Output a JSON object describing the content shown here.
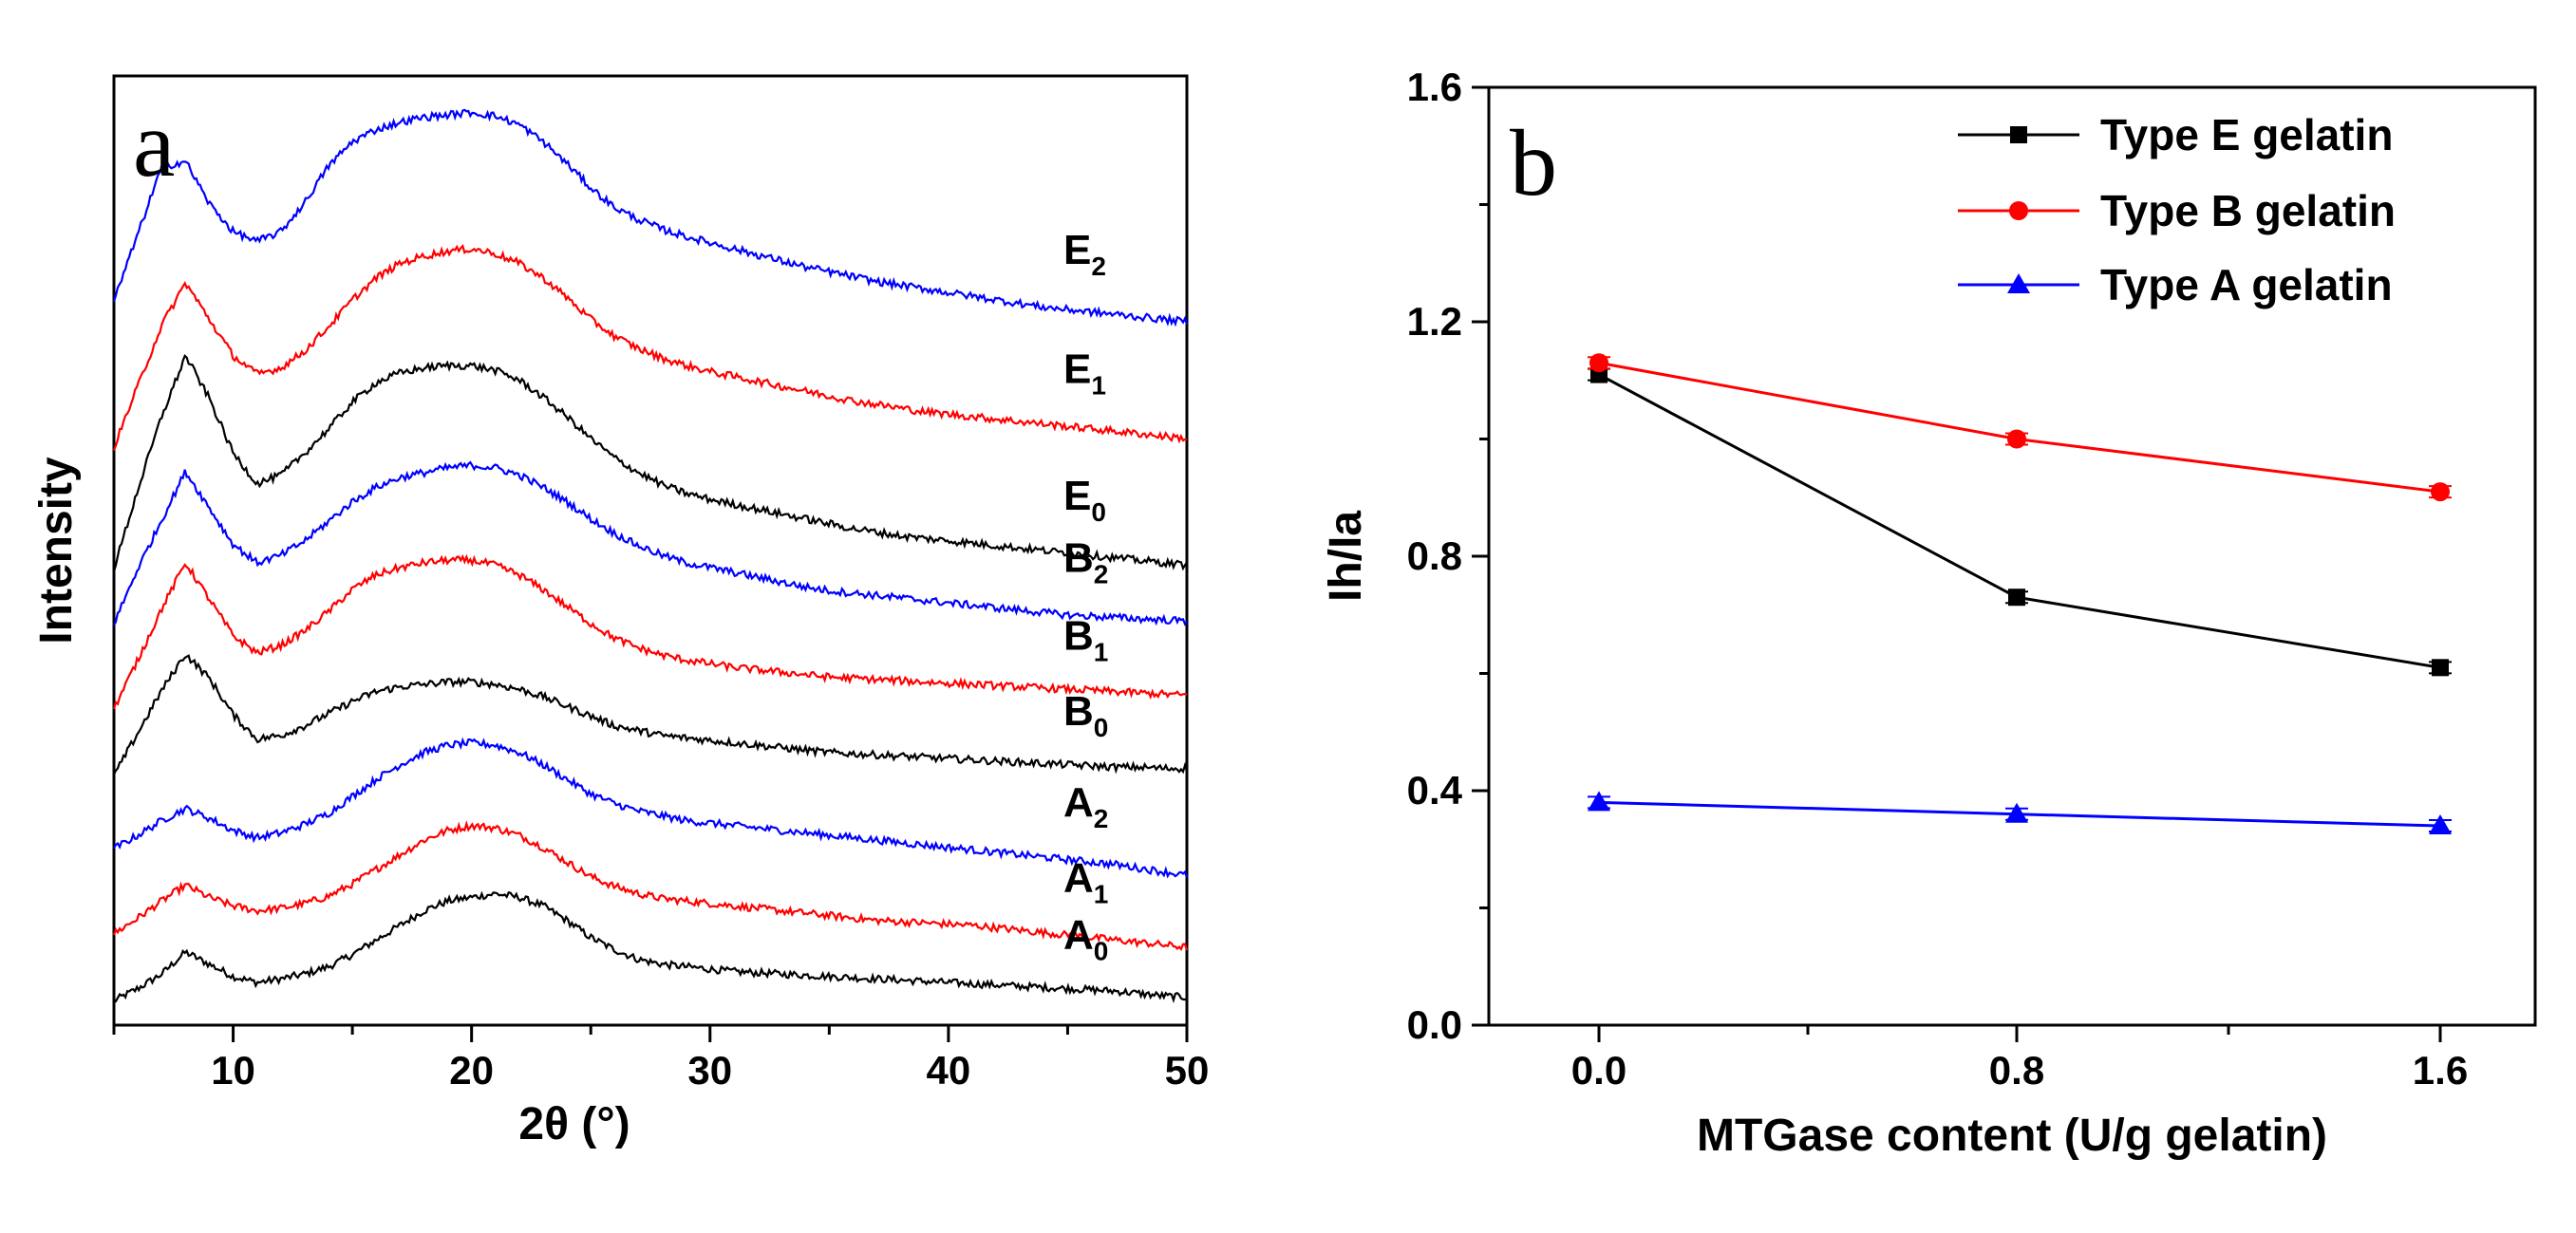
{
  "chart_data": [
    {
      "panel": "a",
      "type": "line",
      "xlabel": "2θ (°)",
      "ylabel": "Intensity",
      "xlim": [
        5,
        50
      ],
      "xticks": [
        "10",
        "20",
        "30",
        "40",
        "50"
      ],
      "grid": false,
      "series": [
        {
          "name": "A",
          "subscript": "0",
          "color": "#000000",
          "x": [
            5,
            6,
            7,
            8,
            9,
            10,
            11,
            12,
            13,
            14,
            15,
            16,
            17,
            18,
            19,
            20,
            21,
            22,
            23,
            24,
            25,
            26,
            27,
            28,
            29,
            30,
            31,
            32,
            33,
            34,
            35,
            36,
            37,
            38,
            39,
            40,
            41,
            42,
            43,
            44,
            45,
            46,
            47,
            48,
            49,
            50
          ],
          "y": [
            0.0,
            0.1,
            0.22,
            0.4,
            0.3,
            0.2,
            0.15,
            0.18,
            0.22,
            0.28,
            0.38,
            0.5,
            0.62,
            0.74,
            0.82,
            0.85,
            0.88,
            0.85,
            0.78,
            0.66,
            0.52,
            0.42,
            0.34,
            0.3,
            0.28,
            0.26,
            0.24,
            0.23,
            0.22,
            0.21,
            0.2,
            0.19,
            0.18,
            0.17,
            0.16,
            0.15,
            0.14,
            0.13,
            0.12,
            0.11,
            0.1,
            0.09,
            0.08,
            0.06,
            0.04,
            0.03
          ]
        },
        {
          "name": "A",
          "subscript": "1",
          "color": "#ff0000",
          "x": [
            5,
            6,
            7,
            8,
            9,
            10,
            11,
            12,
            13,
            14,
            15,
            16,
            17,
            18,
            19,
            20,
            21,
            22,
            23,
            24,
            25,
            26,
            27,
            28,
            29,
            30,
            31,
            32,
            33,
            34,
            35,
            36,
            37,
            38,
            39,
            40,
            41,
            42,
            43,
            44,
            45,
            46,
            47,
            48,
            49,
            50
          ],
          "y": [
            0.55,
            0.68,
            0.82,
            0.95,
            0.85,
            0.78,
            0.74,
            0.76,
            0.8,
            0.86,
            0.96,
            1.08,
            1.2,
            1.32,
            1.4,
            1.44,
            1.42,
            1.36,
            1.26,
            1.14,
            1.02,
            0.94,
            0.88,
            0.84,
            0.82,
            0.8,
            0.78,
            0.76,
            0.74,
            0.72,
            0.7,
            0.68,
            0.66,
            0.65,
            0.64,
            0.63,
            0.62,
            0.6,
            0.58,
            0.56,
            0.54,
            0.52,
            0.5,
            0.48,
            0.46,
            0.44
          ]
        },
        {
          "name": "A",
          "subscript": "2",
          "color": "#0000ff",
          "x": [
            5,
            6,
            7,
            8,
            9,
            10,
            11,
            12,
            13,
            14,
            15,
            16,
            17,
            18,
            19,
            20,
            21,
            22,
            23,
            24,
            25,
            26,
            27,
            28,
            29,
            30,
            31,
            32,
            33,
            34,
            35,
            36,
            37,
            38,
            39,
            40,
            41,
            42,
            43,
            44,
            45,
            46,
            47,
            48,
            49,
            50
          ],
          "y": [
            1.25,
            1.36,
            1.48,
            1.58,
            1.5,
            1.4,
            1.34,
            1.38,
            1.45,
            1.54,
            1.68,
            1.82,
            1.94,
            2.04,
            2.1,
            2.12,
            2.1,
            2.04,
            1.94,
            1.82,
            1.7,
            1.62,
            1.56,
            1.52,
            1.48,
            1.46,
            1.44,
            1.42,
            1.4,
            1.38,
            1.36,
            1.34,
            1.32,
            1.3,
            1.28,
            1.26,
            1.24,
            1.22,
            1.2,
            1.18,
            1.16,
            1.14,
            1.12,
            1.09,
            1.06,
            1.03
          ]
        },
        {
          "name": "B",
          "subscript": "0",
          "color": "#000000",
          "x": [
            5,
            6,
            7,
            8,
            9,
            10,
            11,
            12,
            13,
            14,
            15,
            16,
            17,
            18,
            19,
            20,
            21,
            22,
            23,
            24,
            25,
            26,
            27,
            28,
            29,
            30,
            31,
            32,
            33,
            34,
            35,
            36,
            37,
            38,
            39,
            40,
            41,
            42,
            43,
            44,
            45,
            46,
            47,
            48,
            49,
            50
          ],
          "y": [
            1.85,
            2.2,
            2.55,
            2.85,
            2.65,
            2.35,
            2.15,
            2.18,
            2.26,
            2.36,
            2.46,
            2.54,
            2.58,
            2.6,
            2.62,
            2.62,
            2.6,
            2.56,
            2.5,
            2.42,
            2.34,
            2.26,
            2.22,
            2.18,
            2.16,
            2.14,
            2.12,
            2.1,
            2.08,
            2.06,
            2.04,
            2.03,
            2.02,
            2.01,
            2.0,
            1.99,
            1.98,
            1.97,
            1.96,
            1.95,
            1.94,
            1.93,
            1.92,
            1.92,
            1.91,
            1.91
          ]
        },
        {
          "name": "B",
          "subscript": "1",
          "color": "#ff0000",
          "x": [
            5,
            6,
            7,
            8,
            9,
            10,
            11,
            12,
            13,
            14,
            15,
            16,
            17,
            18,
            19,
            20,
            21,
            22,
            23,
            24,
            25,
            26,
            27,
            28,
            29,
            30,
            31,
            32,
            33,
            34,
            35,
            36,
            37,
            38,
            39,
            40,
            41,
            42,
            43,
            44,
            45,
            46,
            47,
            48,
            49,
            50
          ],
          "y": [
            2.4,
            2.8,
            3.22,
            3.6,
            3.3,
            3.0,
            2.86,
            2.92,
            3.04,
            3.2,
            3.38,
            3.5,
            3.56,
            3.6,
            3.62,
            3.62,
            3.58,
            3.5,
            3.38,
            3.24,
            3.1,
            2.98,
            2.9,
            2.84,
            2.8,
            2.77,
            2.74,
            2.72,
            2.7,
            2.68,
            2.66,
            2.65,
            2.64,
            2.63,
            2.62,
            2.61,
            2.6,
            2.59,
            2.58,
            2.57,
            2.56,
            2.55,
            2.54,
            2.53,
            2.52,
            2.51
          ]
        },
        {
          "name": "B",
          "subscript": "2",
          "color": "#0000ff",
          "x": [
            5,
            6,
            7,
            8,
            9,
            10,
            11,
            12,
            13,
            14,
            15,
            16,
            17,
            18,
            19,
            20,
            21,
            22,
            23,
            24,
            25,
            26,
            27,
            28,
            29,
            30,
            31,
            32,
            33,
            34,
            35,
            36,
            37,
            38,
            39,
            40,
            41,
            42,
            43,
            44,
            45,
            46,
            47,
            48,
            49,
            50
          ],
          "y": [
            3.1,
            3.55,
            3.95,
            4.35,
            4.05,
            3.75,
            3.6,
            3.66,
            3.78,
            3.94,
            4.1,
            4.22,
            4.3,
            4.34,
            4.38,
            4.4,
            4.38,
            4.32,
            4.22,
            4.1,
            3.96,
            3.84,
            3.74,
            3.66,
            3.6,
            3.56,
            3.52,
            3.48,
            3.44,
            3.4,
            3.37,
            3.35,
            3.33,
            3.31,
            3.29,
            3.27,
            3.25,
            3.23,
            3.21,
            3.19,
            3.17,
            3.16,
            3.15,
            3.14,
            3.13,
            3.12
          ]
        },
        {
          "name": "E",
          "subscript": "0",
          "color": "#000000",
          "x": [
            5,
            6,
            7,
            8,
            9,
            10,
            11,
            12,
            13,
            14,
            15,
            16,
            17,
            18,
            19,
            20,
            21,
            22,
            23,
            24,
            25,
            26,
            27,
            28,
            29,
            30,
            31,
            32,
            33,
            34,
            35,
            36,
            37,
            38,
            39,
            40,
            41,
            42,
            43,
            44,
            45,
            46,
            47,
            48,
            49,
            50
          ],
          "y": [
            3.55,
            4.2,
            4.8,
            5.3,
            4.95,
            4.5,
            4.25,
            4.32,
            4.5,
            4.7,
            4.92,
            5.08,
            5.16,
            5.2,
            5.22,
            5.22,
            5.18,
            5.1,
            4.96,
            4.8,
            4.62,
            4.46,
            4.34,
            4.24,
            4.17,
            4.12,
            4.08,
            4.04,
            4.0,
            3.96,
            3.92,
            3.88,
            3.85,
            3.82,
            3.8,
            3.78,
            3.76,
            3.74,
            3.72,
            3.7,
            3.68,
            3.66,
            3.64,
            3.62,
            3.6,
            3.58
          ]
        },
        {
          "name": "E",
          "subscript": "1",
          "color": "#ff0000",
          "x": [
            5,
            6,
            7,
            8,
            9,
            10,
            11,
            12,
            13,
            14,
            15,
            16,
            17,
            18,
            19,
            20,
            21,
            22,
            23,
            24,
            25,
            26,
            27,
            28,
            29,
            30,
            31,
            32,
            33,
            34,
            35,
            36,
            37,
            38,
            39,
            40,
            41,
            42,
            43,
            44,
            45,
            46,
            47,
            48,
            49,
            50
          ],
          "y": [
            4.55,
            5.05,
            5.55,
            5.9,
            5.6,
            5.3,
            5.15,
            5.2,
            5.34,
            5.54,
            5.76,
            5.94,
            6.06,
            6.12,
            6.16,
            6.18,
            6.14,
            6.06,
            5.94,
            5.78,
            5.6,
            5.46,
            5.36,
            5.28,
            5.22,
            5.17,
            5.13,
            5.09,
            5.05,
            5.01,
            4.97,
            4.93,
            4.9,
            4.87,
            4.84,
            4.82,
            4.8,
            4.78,
            4.76,
            4.74,
            4.72,
            4.7,
            4.68,
            4.66,
            4.64,
            4.62
          ]
        },
        {
          "name": "E",
          "subscript": "2",
          "color": "#0000ff",
          "x": [
            5,
            6,
            7,
            8,
            9,
            10,
            11,
            12,
            13,
            14,
            15,
            16,
            17,
            18,
            19,
            20,
            21,
            22,
            23,
            24,
            25,
            26,
            27,
            28,
            29,
            30,
            31,
            32,
            33,
            34,
            35,
            36,
            37,
            38,
            39,
            40,
            41,
            42,
            43,
            44,
            45,
            46,
            47,
            48,
            49,
            50
          ],
          "y": [
            5.75,
            6.3,
            6.85,
            6.9,
            6.55,
            6.32,
            6.24,
            6.32,
            6.56,
            6.86,
            7.06,
            7.16,
            7.22,
            7.26,
            7.28,
            7.3,
            7.27,
            7.2,
            7.06,
            6.88,
            6.68,
            6.52,
            6.42,
            6.34,
            6.28,
            6.23,
            6.18,
            6.13,
            6.08,
            6.03,
            5.99,
            5.95,
            5.91,
            5.88,
            5.85,
            5.82,
            5.79,
            5.76,
            5.73,
            5.7,
            5.68,
            5.66,
            5.64,
            5.62,
            5.6,
            5.58
          ]
        }
      ]
    },
    {
      "panel": "b",
      "type": "line",
      "xlabel": "MTGase content (U/g gelatin)",
      "ylabel": "Ih/Ia",
      "categories": [
        "0.0",
        "0.8",
        "1.6"
      ],
      "ylim": [
        0.0,
        1.6
      ],
      "yticks": [
        "0.0",
        "0.4",
        "0.8",
        "1.2",
        "1.6"
      ],
      "legend_position": "top-right",
      "grid": false,
      "series": [
        {
          "name": "Type E gelatin",
          "color": "#000000",
          "marker": "square",
          "values": [
            1.11,
            0.73,
            0.61
          ]
        },
        {
          "name": "Type B gelatin",
          "color": "#ff0000",
          "marker": "circle",
          "values": [
            1.13,
            1.0,
            0.91
          ]
        },
        {
          "name": "Type A gelatin",
          "color": "#0000ff",
          "marker": "triangle",
          "values": [
            0.38,
            0.36,
            0.34
          ]
        }
      ]
    }
  ]
}
